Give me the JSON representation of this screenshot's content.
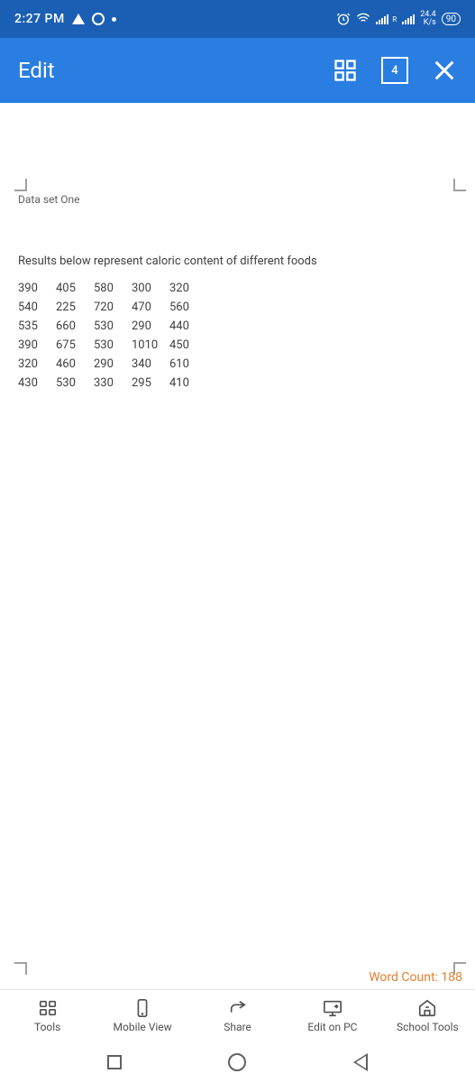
{
  "status": {
    "time": "2:27 PM",
    "rate_top": "24.4",
    "rate_bottom": "K/s",
    "battery": "90",
    "signal_label": "R"
  },
  "appbar": {
    "title": "Edit",
    "page_number": "4"
  },
  "document": {
    "tab_label": "Data set One",
    "heading": "Results below represent caloric content of different foods",
    "rows": [
      [
        "390",
        "405",
        "580",
        "300",
        "320"
      ],
      [
        "540",
        "225",
        "720",
        "470",
        "560"
      ],
      [
        "535",
        "660",
        "530",
        "290",
        "440"
      ],
      [
        "390",
        "675",
        "530",
        "1010",
        "450"
      ],
      [
        "320",
        "460",
        "290",
        "340",
        "610"
      ],
      [
        "430",
        "530",
        "330",
        "295",
        "410"
      ]
    ]
  },
  "footer": {
    "word_count": "Word Count: 188",
    "items": [
      "Tools",
      "Mobile View",
      "Share",
      "Edit on PC",
      "School Tools"
    ]
  }
}
